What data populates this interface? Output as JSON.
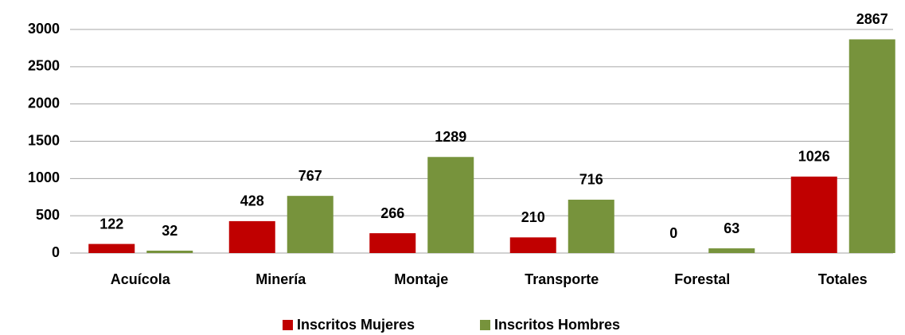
{
  "chart_data": {
    "type": "bar",
    "categories": [
      "Acuícola",
      "Minería",
      "Montaje",
      "Transporte",
      "Forestal",
      "Totales"
    ],
    "series": [
      {
        "name": "Inscritos Mujeres",
        "color": "#c00000",
        "values": [
          122,
          428,
          266,
          210,
          0,
          1026
        ]
      },
      {
        "name": "Inscritos Hombres",
        "color": "#77933c",
        "values": [
          32,
          767,
          1289,
          716,
          63,
          2867
        ]
      }
    ],
    "ylim": [
      0,
      3000
    ],
    "yticks": [
      0,
      500,
      1000,
      1500,
      2000,
      2500,
      3000
    ],
    "grid": true,
    "legend": "bottom"
  }
}
